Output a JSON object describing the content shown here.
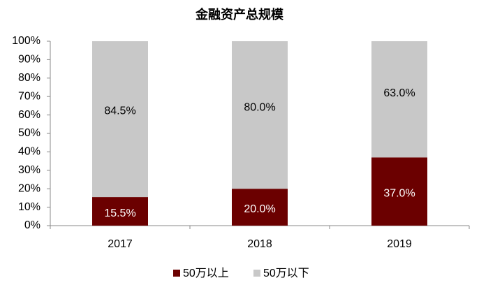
{
  "chart_data": {
    "type": "stacked_bar",
    "title": "金融资产总规模",
    "categories": [
      "2017",
      "2018",
      "2019"
    ],
    "series": [
      {
        "name": "50万以上",
        "color": "#6b0000",
        "values": [
          15.5,
          20.0,
          37.0
        ],
        "value_labels": [
          "15.5%",
          "20.0%",
          "37.0%"
        ],
        "label_color": "#ffffff"
      },
      {
        "name": "50万以下",
        "color": "#c8c8c8",
        "values": [
          84.5,
          80.0,
          63.0
        ],
        "value_labels": [
          "84.5%",
          "80.0%",
          "63.0%"
        ],
        "label_color": "#000000"
      }
    ],
    "ylim": [
      0,
      100
    ],
    "yticks": [
      {
        "value": 0,
        "label": "0%"
      },
      {
        "value": 10,
        "label": "10%"
      },
      {
        "value": 20,
        "label": "20%"
      },
      {
        "value": 30,
        "label": "30%"
      },
      {
        "value": 40,
        "label": "40%"
      },
      {
        "value": 50,
        "label": "50%"
      },
      {
        "value": 60,
        "label": "60%"
      },
      {
        "value": 70,
        "label": "70%"
      },
      {
        "value": 80,
        "label": "80%"
      },
      {
        "value": 90,
        "label": "90%"
      },
      {
        "value": 100,
        "label": "100%"
      }
    ],
    "legend": "bottom"
  }
}
